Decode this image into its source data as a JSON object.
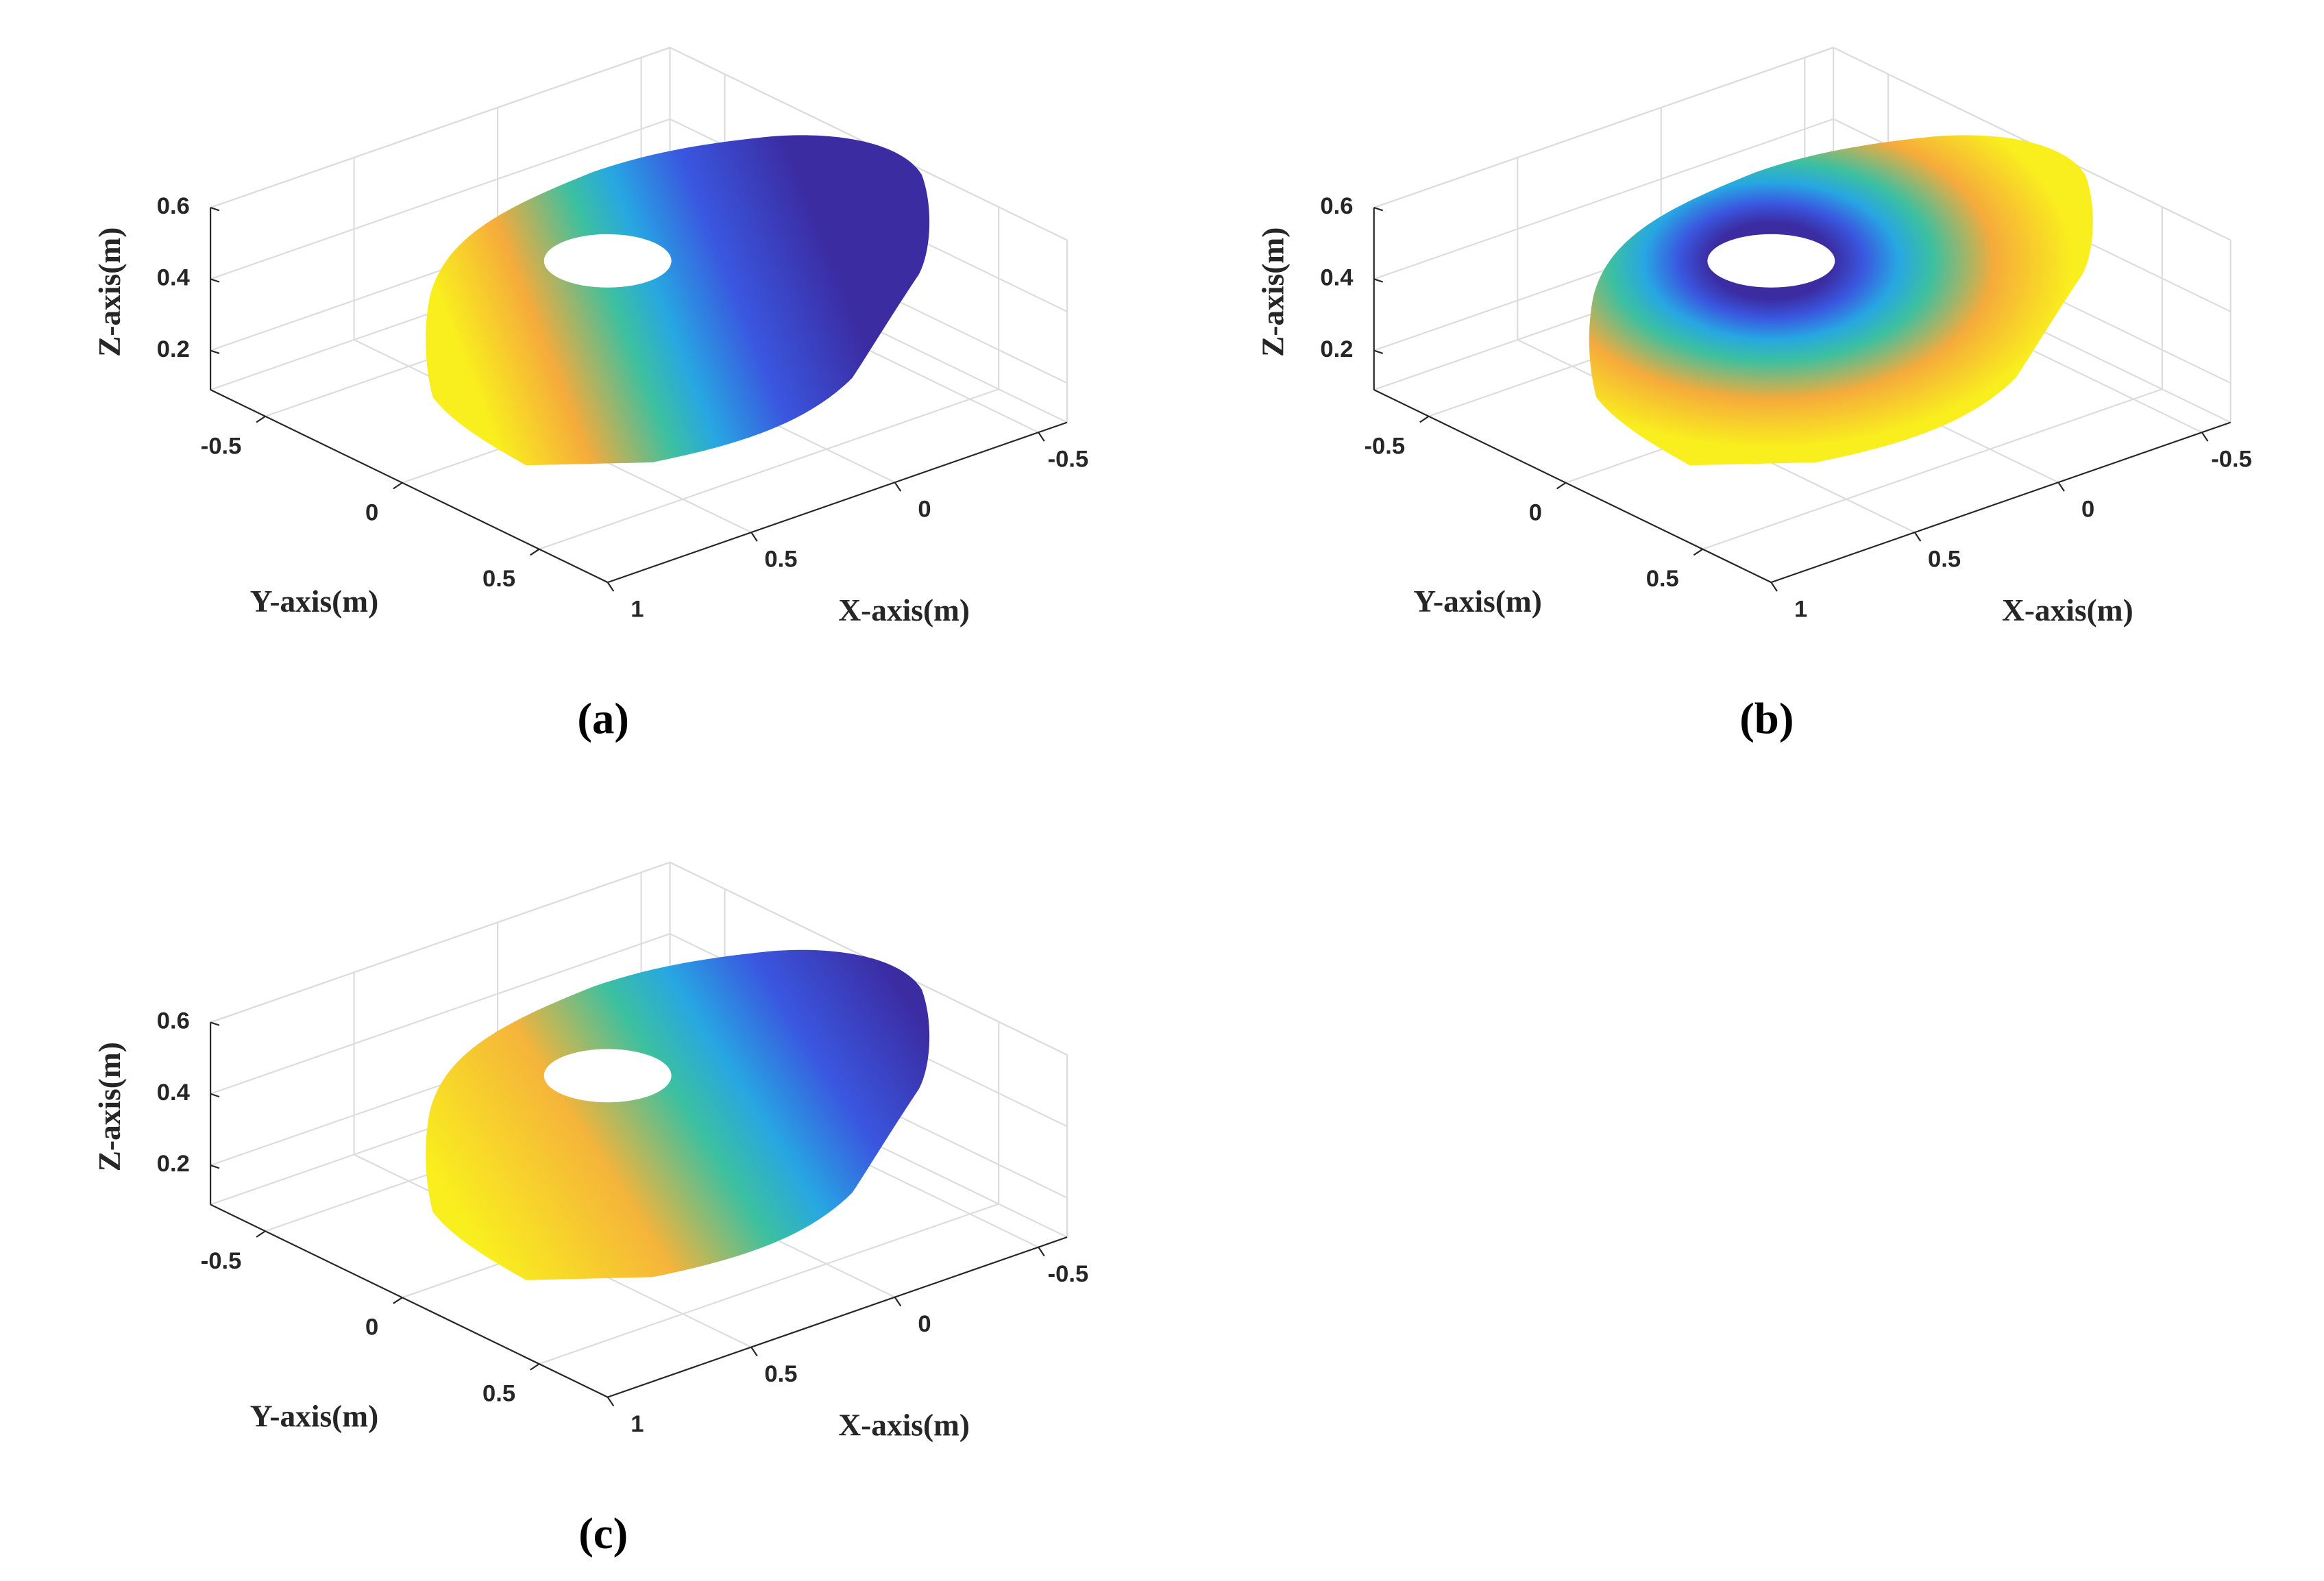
{
  "chart_data": [
    {
      "type": "surface3d",
      "panel_label": "(a)",
      "xlabel": "X-axis(m)",
      "ylabel": "Y-axis(m)",
      "zlabel": "Z-axis(m)",
      "xlim": [
        -0.6,
        1
      ],
      "ylim": [
        -0.7,
        0.75
      ],
      "zlim": [
        0.09,
        0.6
      ],
      "xticks": [
        -0.5,
        0,
        0.5,
        1
      ],
      "yticks": [
        -0.5,
        0,
        0.5
      ],
      "zticks": [
        0.2,
        0.4,
        0.6
      ],
      "grid": true,
      "surface_gradient": "linear",
      "surface_colors": [
        "#f9ee1e",
        "#f6ab3b",
        "#3cc0a0",
        "#27a7e2",
        "#3a57e0",
        "#3b2ca2"
      ]
    },
    {
      "type": "surface3d",
      "panel_label": "(b)",
      "xlabel": "X-axis(m)",
      "ylabel": "Y-axis(m)",
      "zlabel": "Z-axis(m)",
      "xlim": [
        -0.6,
        1
      ],
      "ylim": [
        -0.7,
        0.75
      ],
      "zlim": [
        0.09,
        0.6
      ],
      "xticks": [
        -0.5,
        0,
        0.5,
        1
      ],
      "yticks": [
        -0.5,
        0,
        0.5
      ],
      "zticks": [
        0.2,
        0.4,
        0.6
      ],
      "grid": true,
      "surface_gradient": "radial",
      "surface_colors": [
        "#3b2ca2",
        "#3a57e0",
        "#27a7e2",
        "#3cc0a0",
        "#f6ab3b",
        "#f9ee1e"
      ]
    },
    {
      "type": "surface3d",
      "panel_label": "(c)",
      "xlabel": "X-axis(m)",
      "ylabel": "Y-axis(m)",
      "zlabel": "Z-axis(m)",
      "xlim": [
        -0.6,
        1
      ],
      "ylim": [
        -0.7,
        0.75
      ],
      "zlim": [
        0.09,
        0.6
      ],
      "xticks": [
        -0.5,
        0,
        0.5,
        1
      ],
      "yticks": [
        -0.5,
        0,
        0.5
      ],
      "zticks": [
        0.2,
        0.4,
        0.6
      ],
      "grid": true,
      "surface_gradient": "diagonal",
      "surface_colors": [
        "#f9ee1e",
        "#f5b43a",
        "#3cc0a0",
        "#27a7e2",
        "#3a57e0",
        "#3b2ca2"
      ]
    }
  ]
}
